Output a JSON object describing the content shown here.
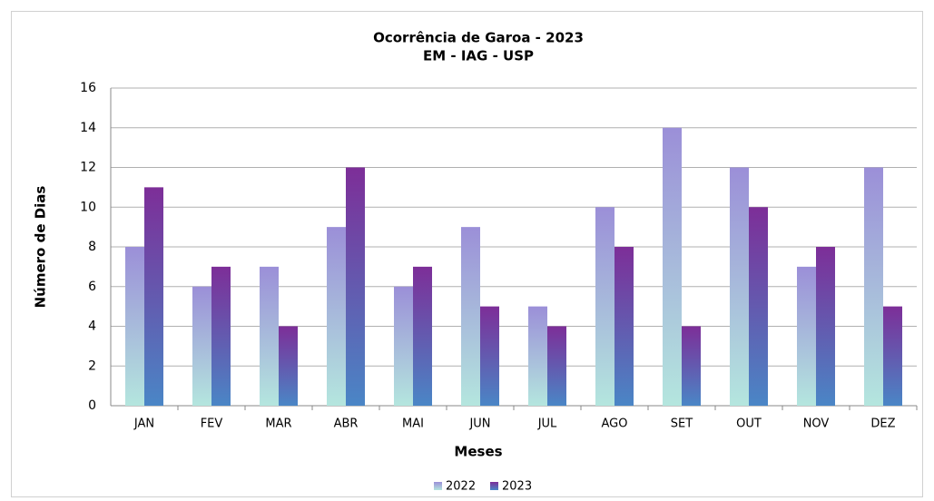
{
  "chart_data": {
    "type": "bar",
    "title": "Ocorrência de Garoa - 2023",
    "subtitle": "EM - IAG - USP",
    "x_label": "Meses",
    "y_label": "Número de Dias",
    "categories": [
      "JAN",
      "FEV",
      "MAR",
      "ABR",
      "MAI",
      "JUN",
      "JUL",
      "AGO",
      "SET",
      "OUT",
      "NOV",
      "DEZ"
    ],
    "series": [
      {
        "name": "2022",
        "color": "#9b8fd8",
        "values": [
          8,
          6,
          7,
          9,
          6,
          9,
          5,
          10,
          14,
          12,
          7,
          12
        ]
      },
      {
        "name": "2023",
        "color": "#7d2e98",
        "values": [
          11,
          7,
          4,
          12,
          7,
          5,
          4,
          8,
          4,
          10,
          8,
          5
        ]
      }
    ],
    "ylim": [
      0,
      16
    ],
    "yticks": [
      0,
      2,
      4,
      6,
      8,
      10,
      12,
      14,
      16
    ],
    "grid": true,
    "legend": "bottom"
  }
}
